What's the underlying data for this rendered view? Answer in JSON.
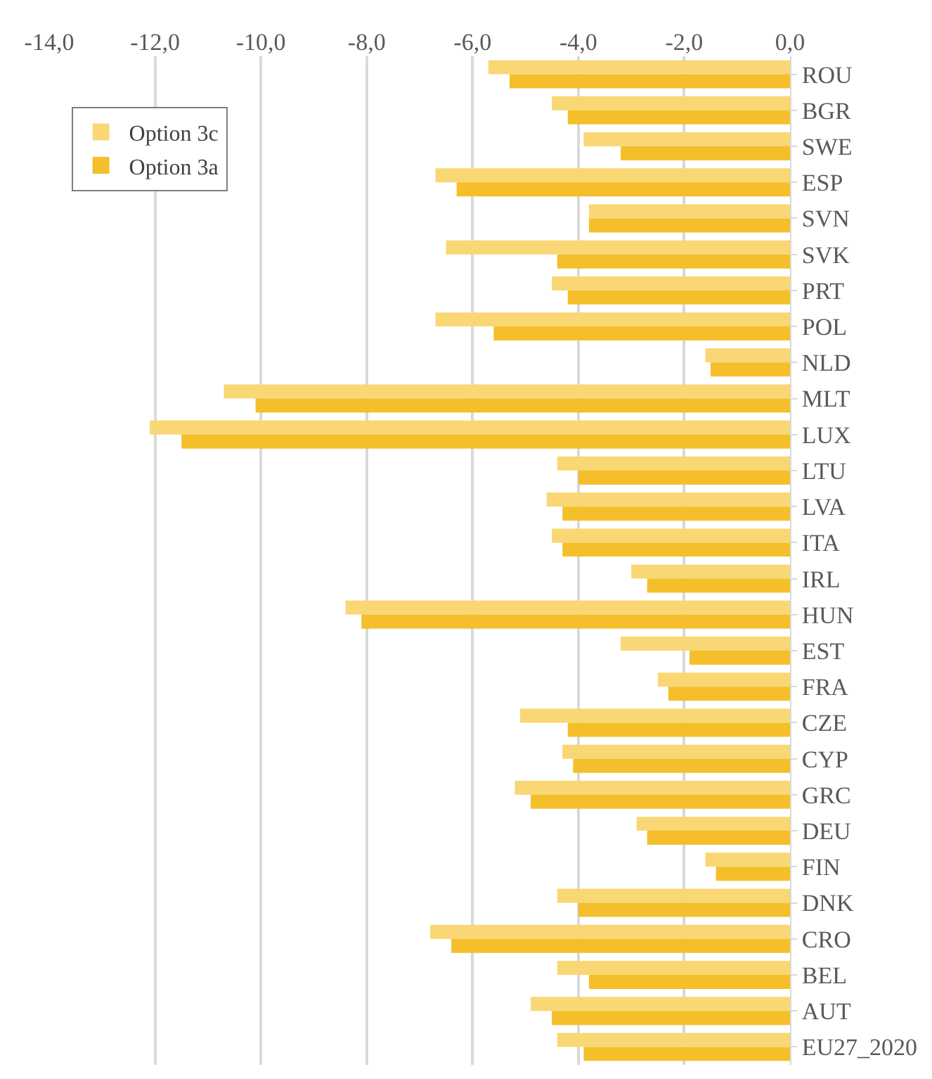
{
  "chart_data": {
    "type": "bar",
    "orientation": "horizontal",
    "categories": [
      "ROU",
      "BGR",
      "SWE",
      "ESP",
      "SVN",
      "SVK",
      "PRT",
      "POL",
      "NLD",
      "MLT",
      "LUX",
      "LTU",
      "LVA",
      "ITA",
      "IRL",
      "HUN",
      "EST",
      "FRA",
      "CZE",
      "CYP",
      "GRC",
      "DEU",
      "FIN",
      "DNK",
      "CRO",
      "BEL",
      "AUT",
      "EU27_2020"
    ],
    "series": [
      {
        "name": "Option 3c",
        "color": "#f9d774",
        "values": [
          -5.7,
          -4.5,
          -3.9,
          -6.7,
          -3.8,
          -6.5,
          -4.5,
          -6.7,
          -1.6,
          -10.7,
          -12.1,
          -4.4,
          -4.6,
          -4.5,
          -3.0,
          -8.4,
          -3.2,
          -2.5,
          -5.1,
          -4.3,
          -5.2,
          -2.9,
          -1.6,
          -4.4,
          -6.8,
          -4.4,
          -4.9,
          -4.4
        ]
      },
      {
        "name": "Option 3a",
        "color": "#f4bf2a",
        "values": [
          -5.3,
          -4.2,
          -3.2,
          -6.3,
          -3.8,
          -4.4,
          -4.2,
          -5.6,
          -1.5,
          -10.1,
          -11.5,
          -4.0,
          -4.3,
          -4.3,
          -2.7,
          -8.1,
          -1.9,
          -2.3,
          -4.2,
          -4.1,
          -4.9,
          -2.7,
          -1.4,
          -4.0,
          -6.4,
          -3.8,
          -4.5,
          -3.9
        ]
      }
    ],
    "xlim": [
      -14,
      0
    ],
    "xticks": [
      {
        "value": -14,
        "label": "-14,0"
      },
      {
        "value": -12,
        "label": "-12,0"
      },
      {
        "value": -10,
        "label": "-10,0"
      },
      {
        "value": -8,
        "label": "-8,0"
      },
      {
        "value": -6,
        "label": "-6,0"
      },
      {
        "value": -4,
        "label": "-4,0"
      },
      {
        "value": -2,
        "label": "-2,0"
      },
      {
        "value": 0,
        "label": "0,0"
      }
    ],
    "grid": "x",
    "legend": "top left"
  }
}
